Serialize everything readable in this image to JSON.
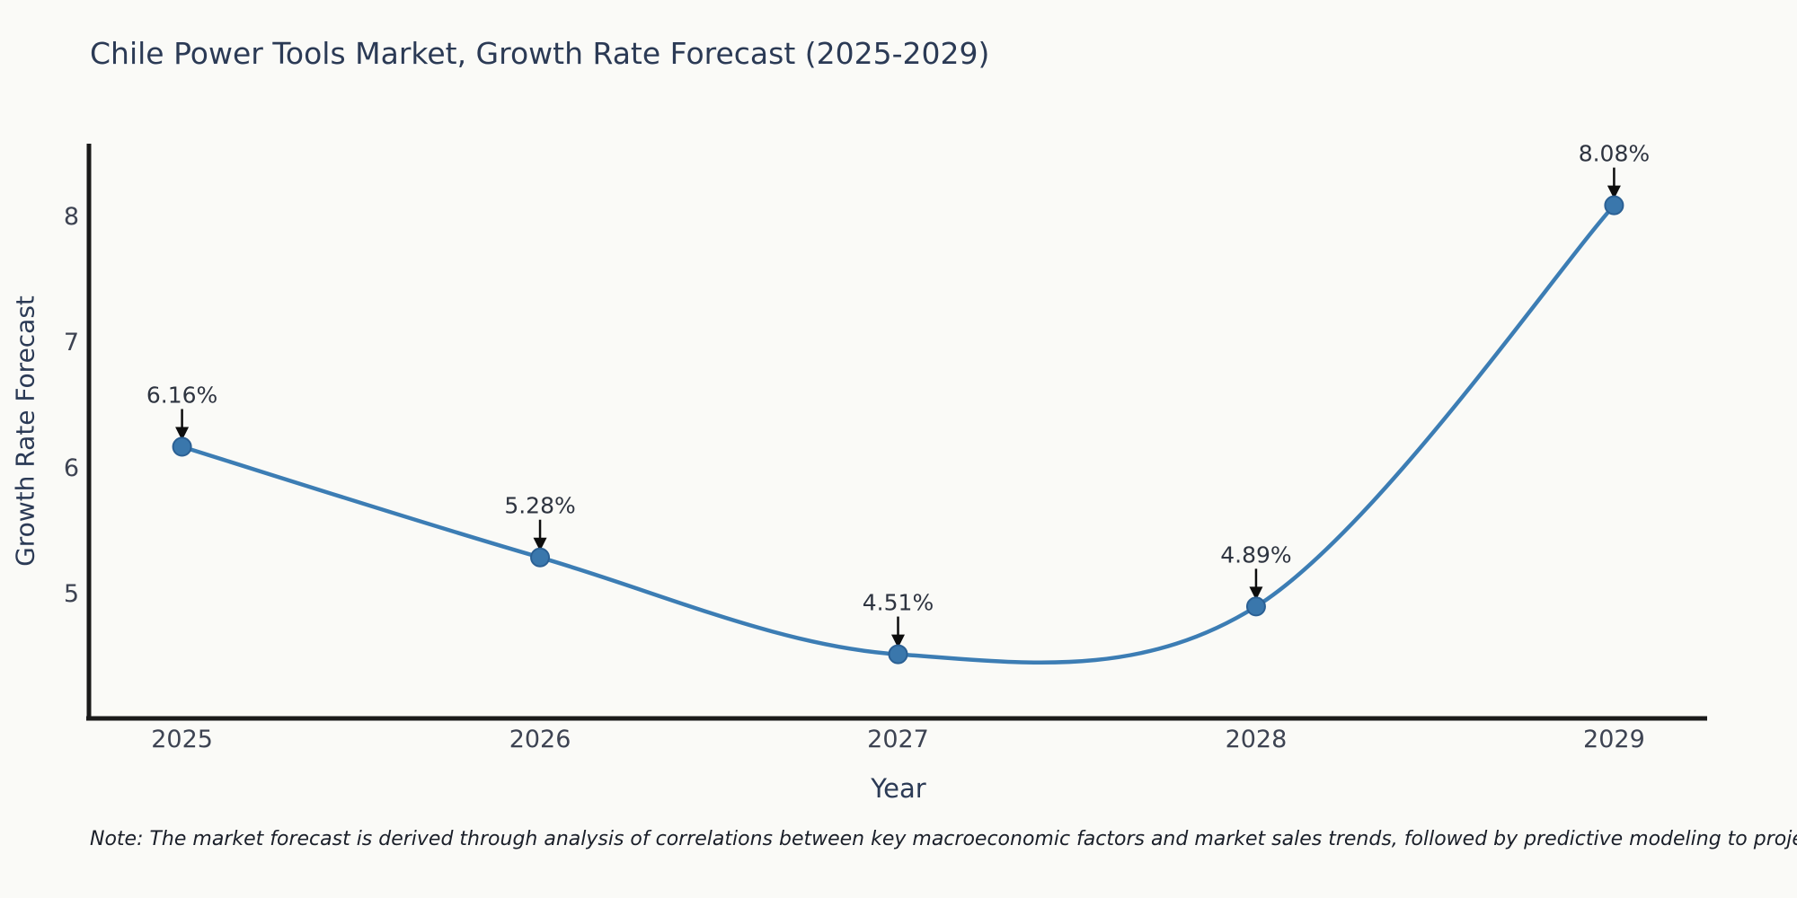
{
  "chart_data": {
    "type": "line",
    "title": "Chile Power Tools Market, Growth Rate Forecast (2025-2029)",
    "xlabel": "Year",
    "ylabel": "Growth Rate Forecast",
    "x": [
      2025,
      2026,
      2027,
      2028,
      2029
    ],
    "series": [
      {
        "name": "Growth Rate Forecast",
        "values": [
          6.16,
          5.28,
          4.51,
          4.89,
          8.08
        ]
      }
    ],
    "point_labels": [
      "6.16%",
      "5.28%",
      "4.51%",
      "4.89%",
      "8.08%"
    ],
    "xtick_labels": [
      "2025",
      "2026",
      "2027",
      "2028",
      "2029"
    ],
    "ytick_values": [
      5,
      6,
      7,
      8
    ],
    "ytick_labels": [
      "5",
      "6",
      "7",
      "8"
    ],
    "xlim": [
      2024.74,
      2029.26
    ],
    "ylim": [
      4.0,
      8.57
    ],
    "grid": false,
    "legend_position": "none",
    "line_style": "smooth-spline",
    "annotations": "value labels with downward arrows above each data point"
  },
  "note": "Note: The market forecast is derived through analysis of correlations between key macroeconomic factors and market sales trends, followed by predictive modeling to project future sales.",
  "colors": {
    "background": "#fafaf7",
    "line": "#3c7db4",
    "marker_fill": "#3a77ac",
    "marker_edge": "#2b6094",
    "axis_line": "#1a1a1a",
    "title_text": "#2b3a55",
    "tick_text": "#3d4352",
    "annotation_text": "#2e3440",
    "arrow": "#0d0d0d"
  }
}
